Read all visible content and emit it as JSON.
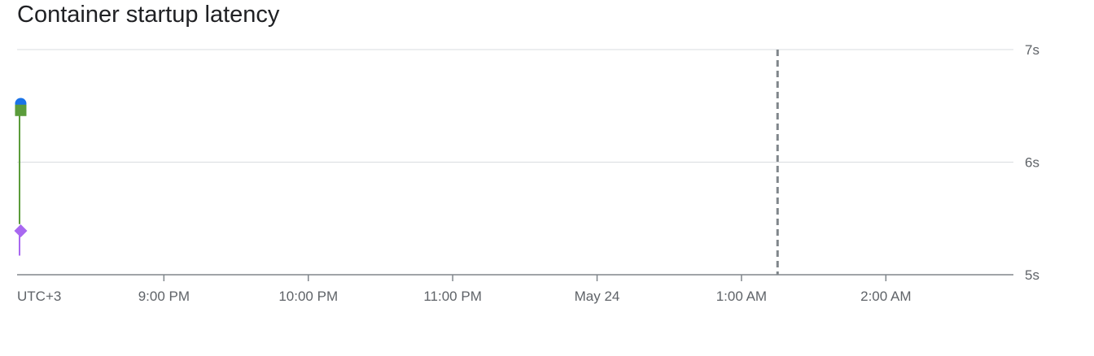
{
  "chart_data": {
    "type": "line",
    "title": "Container startup latency",
    "y_unit": "s",
    "ylim": [
      5,
      7
    ],
    "y_ticks": [
      {
        "value": 7,
        "label": "7s"
      },
      {
        "value": 6,
        "label": "6s"
      },
      {
        "value": 5,
        "label": "5s"
      }
    ],
    "xlim": [
      "2024-05-23T19:59",
      "2024-05-24T02:53"
    ],
    "x_ticks": [
      {
        "value": "2024-05-23T21:00",
        "label": "9:00 PM"
      },
      {
        "value": "2024-05-23T22:00",
        "label": "10:00 PM"
      },
      {
        "value": "2024-05-23T23:00",
        "label": "11:00 PM"
      },
      {
        "value": "2024-05-24T00:00",
        "label": "May 24"
      },
      {
        "value": "2024-05-24T01:00",
        "label": "1:00 AM"
      },
      {
        "value": "2024-05-24T02:00",
        "label": "2:00 AM"
      }
    ],
    "timezone_label": "UTC+3",
    "now_marker": "2024-05-24T01:15",
    "grid": true,
    "series": [
      {
        "color": "#1a73e8",
        "marker": "circle",
        "points": [
          {
            "x": "2024-05-23T20:00",
            "y": 6.52
          }
        ]
      },
      {
        "color": "#5b9c3b",
        "marker": "square",
        "points": [
          {
            "x": "2024-05-23T20:00",
            "y": 6.46
          },
          {
            "x": "2024-05-23T20:00",
            "y": 5.45
          }
        ]
      },
      {
        "color": "#a868f0",
        "marker": "diamond",
        "points": [
          {
            "x": "2024-05-23T20:00",
            "y": 5.39
          },
          {
            "x": "2024-05-23T20:00",
            "y": 5.17
          }
        ]
      }
    ]
  }
}
